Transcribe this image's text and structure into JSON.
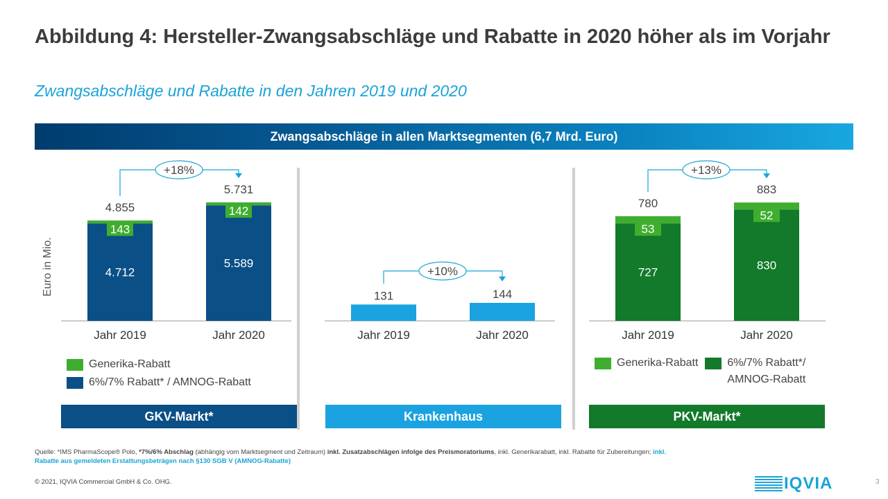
{
  "header": {
    "title": "Abbildung 4: Hersteller-Zwangsabschläge und Rabatte in 2020 höher als im Vorjahr",
    "subtitle": "Zwangsabschläge und Rabatte in den Jahren 2019 und 2020",
    "banner": "Zwangsabschläge in allen Marktsegmenten (6,7 Mrd. Euro)"
  },
  "colors": {
    "gkv_base": "#0b4f87",
    "generika": "#3fae2f",
    "krankenhaus": "#1aa3e0",
    "pkv_base": "#127a2a",
    "gkv_box": "#0b4f87",
    "kh_box": "#1aa3e0",
    "pkv_box": "#127a2a",
    "accent": "#1aa3d8"
  },
  "chart_data": [
    {
      "type": "bar",
      "id": "gkv",
      "title": "GKV-Markt*",
      "ylabel": "Euro in Mio.",
      "ylim": [
        0,
        5731
      ],
      "categories": [
        "Jahr 2019",
        "Jahr 2020"
      ],
      "series": [
        {
          "name": "6%/7% Rabatt* / AMNOG-Rabatt",
          "values": [
            4712,
            5589
          ],
          "labels": [
            "4.712",
            "5.589"
          ]
        },
        {
          "name": "Generika-Rabatt",
          "values": [
            143,
            142
          ],
          "labels": [
            "143",
            "142"
          ]
        }
      ],
      "totals": [
        "4.855",
        "5.731"
      ],
      "growth": "+18%"
    },
    {
      "type": "bar",
      "id": "krankenhaus",
      "title": "Krankenhaus",
      "ylim": [
        0,
        144
      ],
      "categories": [
        "Jahr 2019",
        "Jahr 2020"
      ],
      "series": [
        {
          "name": "Krankenhaus",
          "values": [
            131,
            144
          ],
          "labels": [
            "131",
            "144"
          ]
        }
      ],
      "totals": [
        "131",
        "144"
      ],
      "growth": "+10%"
    },
    {
      "type": "bar",
      "id": "pkv",
      "title": "PKV-Markt*",
      "ylim": [
        0,
        883
      ],
      "categories": [
        "Jahr 2019",
        "Jahr 2020"
      ],
      "series": [
        {
          "name": "6%/7% Rabatt*/ AMNOG-Rabatt",
          "values": [
            727,
            830
          ],
          "labels": [
            "727",
            "830"
          ]
        },
        {
          "name": "Generika-Rabatt",
          "values": [
            53,
            52
          ],
          "labels": [
            "53",
            "52"
          ]
        }
      ],
      "totals": [
        "780",
        "883"
      ],
      "growth": "+13%"
    }
  ],
  "legends": {
    "gkv": {
      "generika": "Generika-Rabatt",
      "base": "6%/7% Rabatt* / AMNOG-Rabatt"
    },
    "pkv": {
      "generika": "Generika-Rabatt",
      "base_line1": "6%/7% Rabatt*/",
      "base_line2": "AMNOG-Rabatt"
    }
  },
  "footer": {
    "source_1": "Quelle: *IMS PharmaScope® Polo, ",
    "source_2": "*7%/6% Abschlag",
    "source_3": " (abhängig vom Marktsegment und Zeitraum) ",
    "source_4": "inkl. Zusatzabschlägen infolge des Preismoratoriums",
    "source_5": ", inkl. Generikarabatt, inkl. Rabatte für Zubereitungen; ",
    "source_6": "inkl. Rabatte aus gemeldeten Erstattungsbeträgen nach §130 SGB V (AMNOG-Rabatte)",
    "copyright": "© 2021, IQVIA Commercial GmbH & Co. OHG.",
    "logo": "IQVIA",
    "page": "3"
  }
}
